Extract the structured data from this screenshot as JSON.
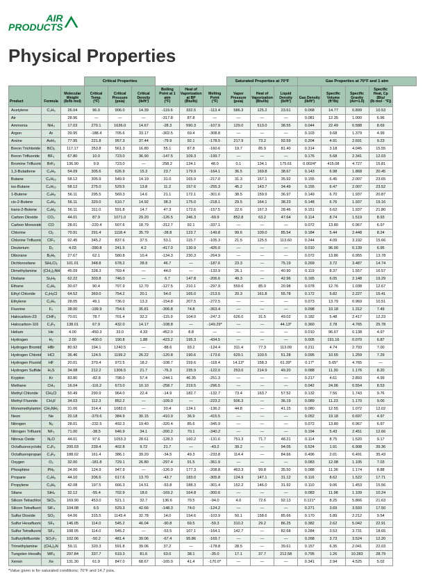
{
  "logo": {
    "line1": "AIR",
    "line2": "PRODUCTS"
  },
  "title": "Physical Properties",
  "groups": [
    {
      "label": "",
      "span": 3
    },
    {
      "label": "Critical Properties",
      "span": 3
    },
    {
      "label": "",
      "span": 3
    },
    {
      "label": "Saturated Properties at 70°F",
      "span": 3
    },
    {
      "label": "Gas Properties at 70°F and 1 atm",
      "span": 5
    }
  ],
  "columns": [
    "Product",
    "Formula",
    "Molecular Weight (lb/lb mol)",
    "Critical Temp. (°F)",
    "Critical Pressure (psia)",
    "Critical Density (lb/ft³)",
    "Boiling Point at 1 atm (°F)",
    "Heat of Vaporization at BP (Btu/lb)",
    "Melting Point (°F)",
    "Vapor Pressure (psia)",
    "Heat of Vaporization (Btu/lb)",
    "Liquid Density (lb/ft³)",
    "Gas Density (lb/ft³)",
    "Specific Volume (ft³/lb)",
    "Specific Gravity (Air=1.0)",
    "Specific Heat, Cp (Btu/(lb mol · °F))"
  ],
  "rows": [
    [
      "Acetylene",
      "C₂H₂",
      "26.04",
      "96.0",
      "906.0",
      "14.39",
      "-119.6",
      "332.5",
      "-113.4",
      "586.3",
      "125.2",
      "23.61",
      "0.068",
      "14.77",
      "0.899",
      "10.53"
    ],
    [
      "Air",
      "",
      "28.96",
      "—",
      "—",
      "—",
      "-317.8",
      "87.8",
      "—",
      "—",
      "—",
      "—",
      "0.081",
      "12.35",
      "1.000",
      "6.96"
    ],
    [
      "Ammonia",
      "NH₃",
      "17.03",
      "270.1",
      "1636.0",
      "14.67",
      "-28.3",
      "590.3",
      "-107.9",
      "129.0",
      "513.0",
      "38.55",
      "0.044",
      "22.49",
      "0.588",
      "8.69"
    ],
    [
      "Argon",
      "Ar",
      "39.95",
      "-188.4",
      "705.6",
      "33.17",
      "-302.5",
      "69.4",
      "-308.8",
      "—",
      "—",
      "—",
      "0.103",
      "9.68",
      "1.379",
      "4.99"
    ],
    [
      "Arsine",
      "AsH₃",
      "77.95",
      "221.8",
      "957.3",
      "37.44",
      "-79.9",
      "92.1",
      "-178.5",
      "217.9",
      "73.2",
      "92.59",
      "0.204",
      "4.91",
      "2.691",
      "9.23"
    ],
    [
      "Boron Trichloride",
      "BCl₃",
      "117.17",
      "353.8",
      "561.3",
      "16.80",
      "55.1",
      "87.8",
      "-160.6",
      "19.7",
      "85.9",
      "81.40",
      "0.314",
      "3.18",
      "4.045",
      "15.55"
    ],
    [
      "Boron Trifluoride",
      "BF₃",
      "67.80",
      "10.0",
      "723.0",
      "36.90",
      "-147.5",
      "109.3",
      "-199.7",
      "—",
      "—",
      "—",
      "0.176",
      "5.68",
      "2.341",
      "12.03"
    ],
    [
      "Bromine Trifluoride",
      "BrF₃",
      "136.90",
      "9.9",
      "723.0",
      "—",
      "258.2",
      "134.1",
      "48.0",
      "0.1",
      "134.1",
      "175.61",
      "0.0024*",
      "415.08",
      "4.727",
      "15.81"
    ],
    [
      "1,3-Butadiene",
      "C₄H₆",
      "54.09",
      "305.6",
      "626.9",
      "15.3",
      "23.7",
      "179.9",
      "-164.1",
      "36.5",
      "169.8",
      "38.67",
      "0.143",
      "6.98",
      "1.868",
      "20.45"
    ],
    [
      "Butane",
      "C₄H₁₀",
      "58.12",
      "305.9",
      "549.9",
      "14.19",
      "31.0",
      "165.9",
      "-217.0",
      "31.3",
      "157.1",
      "35.92",
      "0.155",
      "6.45",
      "2.007",
      "23.65"
    ],
    [
      "iso-Butane",
      "C₄H₁₀",
      "58.12",
      "275.0",
      "529.5",
      "13.8",
      "11.2",
      "157.6",
      "-255.3",
      "45.2",
      "143.7",
      "34.49",
      "0.155",
      "6.47",
      "2.007",
      "23.52"
    ],
    [
      "1-Butene",
      "C₄H₈",
      "56.11",
      "295.5",
      "569.3",
      "14.6",
      "21.1",
      "172.1",
      "-301.6",
      "38.5",
      "159.9",
      "36.97",
      "0.149",
      "6.70",
      "1.937",
      "20.87"
    ],
    [
      "cis-2-Butene",
      "C₄H₈",
      "56.11",
      "320.0",
      "610.7",
      "14.92",
      "38.3",
      "175.0",
      "-218.1",
      "29.5",
      "164.1",
      "38.23",
      "0.148",
      "6.76",
      "1.937",
      "19.16"
    ],
    [
      "trans-2-Butene",
      "C₄H₈",
      "56.11",
      "311.0",
      "591.8",
      "14.7",
      "47.3",
      "172.6",
      "-157.5",
      "22.6",
      "167.3",
      "28.46",
      "0.151",
      "6.62",
      "1.937",
      "21.80"
    ],
    [
      "Carbon Dioxide",
      "CO₂",
      "44.01",
      "87.9",
      "1071.0",
      "29.20",
      "-126.5",
      "246.3",
      "-69.9",
      "852.8",
      "63.2",
      "47.64",
      "0.114",
      "8.74",
      "1.519",
      "8.93"
    ],
    [
      "Carbon Monoxide",
      "CO",
      "28.01",
      "-220.4",
      "507.6",
      "18.79",
      "-312.7",
      "92.1",
      "-337.1",
      "—",
      "—",
      "—",
      "0.072",
      "13.80",
      "0.967",
      "6.97"
    ],
    [
      "Chlorine",
      "Cl₂",
      "70.91",
      "291.4",
      "1118.4",
      "35.79",
      "-28.8",
      "123.7",
      "-149.8",
      "99.6",
      "109.0",
      "85.54",
      "0.184",
      "5.44",
      "2.448",
      "8.24"
    ],
    [
      "Chlorine Trifluoride",
      "ClF₃",
      "92.45",
      "345.2",
      "837.6",
      "37.5",
      "53.1",
      "115.7",
      "-105.3",
      "21.5",
      "125.5",
      "113.60",
      "0.244",
      "4.09",
      "3.192",
      "15.66"
    ],
    [
      "Deuterium",
      "D₂",
      "4.03",
      "-390.8",
      "241.5",
      "4.2",
      "-417.0",
      "130.9",
      "-426.0",
      "—",
      "—",
      "—",
      "0.010",
      "96.00",
      "0.139",
      "6.95"
    ],
    [
      "Diborane",
      "B₂H₆",
      "27.67",
      "62.1",
      "580.8",
      "10.4",
      "-134.3",
      "230.3",
      "-264.9",
      "—",
      "—",
      "—",
      "0.072",
      "13.86",
      "0.955",
      "13.78"
    ],
    [
      "Dichlorosilane",
      "SiH₂Cl₂",
      "101.01",
      "348.8",
      "678.2",
      "28.9",
      "46.7",
      "—",
      "-187.6",
      "23.3",
      "—",
      "75.19",
      "0.269",
      "3.72",
      "3.487",
      "14.74"
    ],
    [
      "Dimethylamine",
      "(CH₃)₂NH",
      "45.09",
      "328.3",
      "769.4",
      "—",
      "44.0",
      "—",
      "-133.9",
      "26.1",
      "—",
      "40.90",
      "0.119",
      "8.37",
      "1.557",
      "16.57"
    ],
    [
      "Disilane",
      "Si₂H₆",
      "62.22",
      "303.8",
      "746.0",
      "—",
      "6.7",
      "147.8",
      "-206.6",
      "49.3",
      "—",
      "42.96",
      "0.165",
      "6.05",
      "2.148",
      "19.29"
    ],
    [
      "Ethane",
      "C₂H₆",
      "30.07",
      "90.4",
      "707.9",
      "12.70",
      "-127.5",
      "210.1",
      "-297.9",
      "559.6",
      "85.0",
      "20.98",
      "0.078",
      "12.76",
      "1.038",
      "12.67"
    ],
    [
      "Ethyl Chloride",
      "C₂H₅Cl",
      "64.52",
      "369.0",
      "754.2",
      "20.1",
      "54.0",
      "165.0",
      "-213.5",
      "20.3",
      "161.8",
      "55.78",
      "0.172",
      "5.82",
      "2.227",
      "15.41"
    ],
    [
      "Ethylene",
      "C₂H₄",
      "28.05",
      "49.1",
      "736.0",
      "13.3",
      "-154.8",
      "207.5",
      "-272.5",
      "—",
      "—",
      "—",
      "0.073",
      "13.79",
      "0.969",
      "10.51"
    ],
    [
      "Fluorine",
      "F₂",
      "38.00",
      "-199.9",
      "754.6",
      "35.81",
      "-306.8",
      "74.8",
      "-363.4",
      "—",
      "—",
      "—",
      "0.098",
      "10.18",
      "1.312",
      "7.49"
    ],
    [
      "Halocarbon-23",
      "CHF₃",
      "70.01",
      "78.7",
      "701.4",
      "32.2",
      "-115.9",
      "104.0",
      "-247.3",
      "626.0",
      "31.5",
      "49.02",
      "0.182",
      "5.48",
      "2.417",
      "12.23"
    ],
    [
      "Halocarbon-116",
      "C₂F₆",
      "138.01",
      "67.9",
      "432.0",
      "14.17",
      "-108.8",
      "—",
      "-149.29*",
      "—",
      "—",
      "44.13*",
      "0.360",
      "2.78",
      "4.765",
      "25.78"
    ],
    [
      "Helium",
      "He",
      "4.00",
      "-450.3",
      "33.0",
      "4.33",
      "-452.0",
      "8.8",
      "—",
      "—",
      "—",
      "—",
      "0.010",
      "96.67",
      "0.138",
      "4.97"
    ],
    [
      "Hydrogen",
      "H₂",
      "2.00",
      "-400.0",
      "190.8",
      "1.88",
      "-423.2",
      "195.3",
      "-434.5",
      "—",
      "—",
      "—",
      "0.005",
      "191.16",
      "0.070",
      "6.87"
    ],
    [
      "Hydrogen Bromide",
      "HBr",
      "80.92",
      "194.1",
      "1240.5",
      "—",
      "-88.6",
      "93.2",
      "-124.4",
      "311.4",
      "77.3",
      "113.09",
      "0.211",
      "4.74",
      "2.793",
      "7.00"
    ],
    [
      "Hydrogen Chloride",
      "HCl",
      "36.46",
      "124.5",
      "1199.2",
      "26.22",
      "-120.8",
      "190.6",
      "-173.6",
      "629.1",
      "103.5",
      "51.28",
      "0.095",
      "10.55",
      "1.259",
      "7.29"
    ],
    [
      "Hydrogen Fluoride",
      "HF",
      "20.01",
      "370.4",
      "972.5",
      "18.2",
      "-108.7",
      "159.6",
      "-118.4",
      "14.13*",
      "158.3",
      "61.39*",
      "0.17*",
      "5.65*",
      "4.765",
      "—"
    ],
    [
      "Hydrogen Sulfide",
      "H₂S",
      "34.08",
      "212.2",
      "1306.5",
      "21.7",
      "-76.3",
      "235.9",
      "-122.0",
      "253.0",
      "214.9",
      "49.20",
      "0.088",
      "11.30",
      "1.176",
      "8.20"
    ],
    [
      "Krypton",
      "Kr",
      "83.80",
      "-82.8",
      "798.0",
      "57.4",
      "-244.1",
      "46.35",
      "-251.3",
      "—",
      "—",
      "—",
      "0.217",
      "4.61",
      "2.893",
      "4.99"
    ],
    [
      "Methane",
      "CH₄",
      "16.04",
      "-116.2",
      "673.0",
      "10.10",
      "-258.7",
      "219.5",
      "-296.5",
      "—",
      "—",
      "—",
      "0.042",
      "24.06",
      "0.554",
      "8.53"
    ],
    [
      "Methyl Chloride",
      "CH₃Cl",
      "50.49",
      "290.9",
      "964.0",
      "22.4",
      "-14.9",
      "182.7",
      "-132.7",
      "73.4",
      "163.7",
      "57.52",
      "0.132",
      "7.56",
      "1.743",
      "9.76"
    ],
    [
      "Methyl Fluoride",
      "CH₃F",
      "34.03",
      "112.3",
      "852.2",
      "—",
      "-109.0",
      "—",
      "-223.2",
      "506.3",
      "—",
      "36.19",
      "0.089",
      "11.23",
      "1.170",
      "9.00"
    ],
    [
      "Monomethylamine",
      "CH₃NH₂",
      "31.06",
      "314.4",
      "1082.0",
      "—",
      "20.4",
      "134.1",
      "-136.2",
      "44.8",
      "—",
      "41.15",
      "0.080",
      "12.55",
      "1.072",
      "12.02"
    ],
    [
      "Neon",
      "Ne",
      "20.18",
      "-379.6",
      "384.9",
      "30.15",
      "-410.9",
      "36.9",
      "-415.5",
      "—",
      "—",
      "—",
      "0.052",
      "19.18",
      "0.697",
      "4.97"
    ],
    [
      "Nitrogen",
      "N₂",
      "28.01",
      "-232.5",
      "492.3",
      "19.40",
      "-320.4",
      "85.6",
      "-345.9",
      "—",
      "—",
      "—",
      "0.072",
      "13.80",
      "0.967",
      "6.97"
    ],
    [
      "Nitrogen Trifluoride",
      "NF₃",
      "71.00",
      "-38.5",
      "646.9",
      "34.1",
      "-200.2",
      "70.1",
      "-340.2",
      "—",
      "—",
      "—",
      "0.194",
      "5.43",
      "2.451",
      "12.66"
    ],
    [
      "Nitrous Oxide",
      "N₂O",
      "44.01",
      "97.6",
      "1053.3",
      "28.61",
      "-128.3",
      "160.2",
      "-131.6",
      "751.3",
      "71.7",
      "48.21",
      "0.114",
      "8.75",
      "1.520",
      "9.17"
    ],
    [
      "Octafluorocyclobutane",
      "C₄F₈",
      "200.03",
      "239.4",
      "402.8",
      "9.72",
      "21.7",
      "—",
      "-43.2",
      "39.2",
      "—",
      "94.05",
      "0.524",
      "1.91",
      "6.908",
      "39.36"
    ],
    [
      "Octafluoropropane",
      "C₃F₈",
      "188.02",
      "161.4",
      "386.1",
      "39.20",
      "-34.5",
      "49.3",
      "-233.8",
      "114.4",
      "—",
      "84.66",
      "0.496",
      "2.01",
      "6.491",
      "35.43"
    ],
    [
      "Oxygen",
      "O₂",
      "32.00",
      "-181.8",
      "729.1",
      "26.80",
      "-297.4",
      "91.5",
      "-361.9",
      "—",
      "—",
      "—",
      "0.083",
      "12.08",
      "1.105",
      "7.03"
    ],
    [
      "Phosphine",
      "PH₃",
      "34.00",
      "124.9",
      "947.9",
      "—",
      "-126.0",
      "177.3",
      "-208.8",
      "463.3",
      "99.8",
      "35.50",
      "0.088",
      "11.36",
      "1.174",
      "8.88"
    ],
    [
      "Propane",
      "C₃H₈",
      "44.10",
      "206.6",
      "617.6",
      "13.70",
      "-43.7",
      "183.0",
      "-305.8",
      "124.9",
      "147.1",
      "31.12",
      "0.116",
      "8.62",
      "1.522",
      "17.71"
    ],
    [
      "Propylene",
      "C₃H₆",
      "42.08",
      "197.5",
      "666.3",
      "14.51",
      "-53.8",
      "188.3",
      "-301.4",
      "152.2",
      "146.0",
      "31.92",
      "0.110",
      "9.06",
      "1.453",
      "15.56"
    ],
    [
      "Silane",
      "SiH₄",
      "32.12",
      "-55.4",
      "702.9",
      "18.0",
      "-169.2",
      "164.8",
      "-300.6",
      "—",
      "—",
      "—",
      "0.083",
      "11.98",
      "1.109",
      "10.24"
    ],
    [
      "Silicon Tetrachloride",
      "SiCl₄",
      "169.90",
      "453.0",
      "521.1",
      "32.7",
      "136.6",
      "70.5",
      "-94.0",
      "4.0",
      "72.6",
      "92.13",
      "0.121*",
      "8.25",
      "5.866",
      "21.63"
    ],
    [
      "Silicon Tetrafluoride",
      "SiF₄",
      "104.08",
      "6.5",
      "529.3",
      "42.66",
      "-148.3",
      "74.0",
      "-124.2",
      "—",
      "—",
      "—",
      "0.271",
      "3.69",
      "3.593",
      "17.50"
    ],
    [
      "Sulfur Dioxide",
      "SO₂",
      "64.06",
      "315.5",
      "1143.4",
      "32.78",
      "14.0",
      "154.6",
      "-103.9",
      "50.1",
      "158.6",
      "85.66",
      "0.170",
      "5.89",
      "2.212",
      "9.54"
    ],
    [
      "Sulfur Hexafluoride",
      "SF₆",
      "146.05",
      "114.0",
      "545.2",
      "46.04",
      "-90.8",
      "69.5",
      "-59.3",
      "310.2",
      "29.2",
      "86.25",
      "0.382",
      "2.62",
      "5.042",
      "22.91"
    ],
    [
      "Sulfur Tetrafluoride",
      "SF₄",
      "108.05",
      "114.0",
      "545.2",
      "—",
      "-53.5",
      "107.1",
      "-164.1",
      "142.7",
      "—",
      "82.68",
      "0.284",
      "3.53",
      "3.731",
      "18.65"
    ],
    [
      "Sulfuryltrifluoride",
      "SO₂F₂",
      "102.06",
      "-50.2",
      "481.4",
      "39.06",
      "-67.4",
      "95.86",
      "-169.7",
      "—",
      "—",
      "—",
      "0.268",
      "3.73",
      "3.524",
      "12.20"
    ],
    [
      "Trimethylamine",
      "(CH₃)₃N",
      "59.11",
      "320.3",
      "591.8",
      "39.06",
      "37.2",
      "—",
      "-178.8",
      "28.5",
      "—",
      "39.61",
      "0.157",
      "6.35",
      "2.041",
      "22.03"
    ],
    [
      "Tungsten Hexafluoride",
      "WF₆",
      "297.84",
      "337.7",
      "619.3",
      "81.6",
      "63.0",
      "38.1",
      "-35.0",
      "17.1",
      "37.7",
      "212.58",
      "0.795",
      "1.26",
      "10.283",
      "28.79"
    ],
    [
      "Xenon",
      "Xe",
      "131.30",
      "61.9",
      "847.0",
      "68.67",
      "-165.0",
      "41.4",
      "-170.0*",
      "—",
      "—",
      "—",
      "0.341",
      "2.94",
      "4.525",
      "5.02"
    ]
  ],
  "footnote": "*Value given is for saturated conditions; 70°F and 14.7 psia."
}
